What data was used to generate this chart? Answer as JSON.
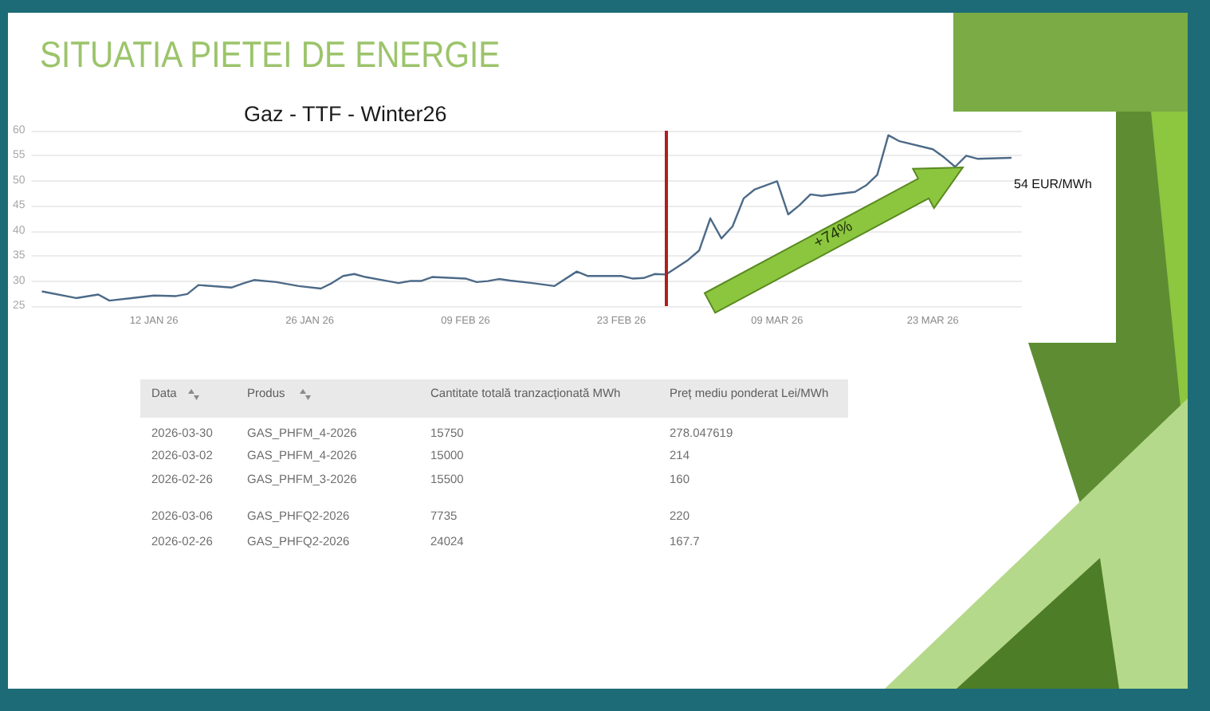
{
  "chart_data": [
    {
      "type": "line",
      "title": "SITUATIA PIETEI DE ENERGIE",
      "subtitle": "Gaz - TTF - Winter26",
      "x": [
        "2026-01-02",
        "2026-01-05",
        "2026-01-07",
        "2026-01-08",
        "2026-01-10",
        "2026-01-12",
        "2026-01-14",
        "2026-01-15",
        "2026-01-16",
        "2026-01-19",
        "2026-01-20",
        "2026-01-21",
        "2026-01-23",
        "2026-01-25",
        "2026-01-27",
        "2026-01-28",
        "2026-01-29",
        "2026-01-30",
        "2026-01-31",
        "2026-02-02",
        "2026-02-03",
        "2026-02-04",
        "2026-02-05",
        "2026-02-06",
        "2026-02-09",
        "2026-02-10",
        "2026-02-11",
        "2026-02-12",
        "2026-02-13",
        "2026-02-15",
        "2026-02-17",
        "2026-02-19",
        "2026-02-20",
        "2026-02-23",
        "2026-02-24",
        "2026-02-25",
        "2026-02-26",
        "2026-02-27",
        "2026-03-01",
        "2026-03-02",
        "2026-03-03",
        "2026-03-04",
        "2026-03-05",
        "2026-03-06",
        "2026-03-07",
        "2026-03-09",
        "2026-03-10",
        "2026-03-11",
        "2026-03-12",
        "2026-03-13",
        "2026-03-16",
        "2026-03-17",
        "2026-03-18",
        "2026-03-19",
        "2026-03-20",
        "2026-03-23",
        "2026-03-24",
        "2026-03-25",
        "2026-03-26",
        "2026-03-27",
        "2026-03-30"
      ],
      "values": [
        27.9,
        26.6,
        27.3,
        26.1,
        26.6,
        27.1,
        27.0,
        27.4,
        29.2,
        28.7,
        29.5,
        30.2,
        29.8,
        29.0,
        28.5,
        29.6,
        31.0,
        31.4,
        30.8,
        30.0,
        29.6,
        30.0,
        30.0,
        30.8,
        30.5,
        29.8,
        30.0,
        30.4,
        30.1,
        29.6,
        29.0,
        31.9,
        31.0,
        31.0,
        30.5,
        30.6,
        31.4,
        31.3,
        34.2,
        36.1,
        42.5,
        38.5,
        40.9,
        46.5,
        48.3,
        49.9,
        43.3,
        45.1,
        47.3,
        47.0,
        47.8,
        49.1,
        51.2,
        59.1,
        57.9,
        56.3,
        54.7,
        52.8,
        55.0,
        54.4,
        54.6
      ],
      "color": "#4d6a88",
      "xlim": [
        "2026-01-01",
        "2026-03-31"
      ],
      "xticks": [
        {
          "value": "2026-01-12",
          "label": "12 JAN 26"
        },
        {
          "value": "2026-01-26",
          "label": "26 JAN 26"
        },
        {
          "value": "2026-02-09",
          "label": "09 FEB 26"
        },
        {
          "value": "2026-02-23",
          "label": "23 FEB 26"
        },
        {
          "value": "2026-03-09",
          "label": "09 MAR 26"
        },
        {
          "value": "2026-03-23",
          "label": "23 MAR 26"
        }
      ],
      "ylim": [
        25,
        60
      ],
      "yticks": [
        25,
        30,
        35,
        40,
        45,
        50,
        55,
        60
      ],
      "grid": "y",
      "marker": "none",
      "line_style": "solid",
      "ref_lines": [
        {
          "axis": "x",
          "value": "2026-02-27",
          "color": "#b01e1e"
        }
      ],
      "annotations": [
        "+74%",
        "54 EUR/MWh"
      ]
    },
    {
      "type": "other",
      "categories": [
        "Data",
        "Produs",
        "Cantitate totală tranzacționată MWh",
        "Preț mediu ponderat Lei/MWh"
      ],
      "cell_labels": [
        [
          "2026-03-30",
          "GAS_PHFM_4-2026",
          "15750",
          "278.047619"
        ],
        [
          "2026-03-02",
          "GAS_PHFM_4-2026",
          "15000",
          "214"
        ],
        [
          "2026-02-26",
          "GAS_PHFM_3-2026",
          "15500",
          "160"
        ],
        [
          "2026-03-06",
          "GAS_PHFQ2-2026",
          "7735",
          "220"
        ],
        [
          "2026-02-26",
          "GAS_PHFQ2-2026",
          "24024",
          "167.7"
        ]
      ]
    }
  ]
}
